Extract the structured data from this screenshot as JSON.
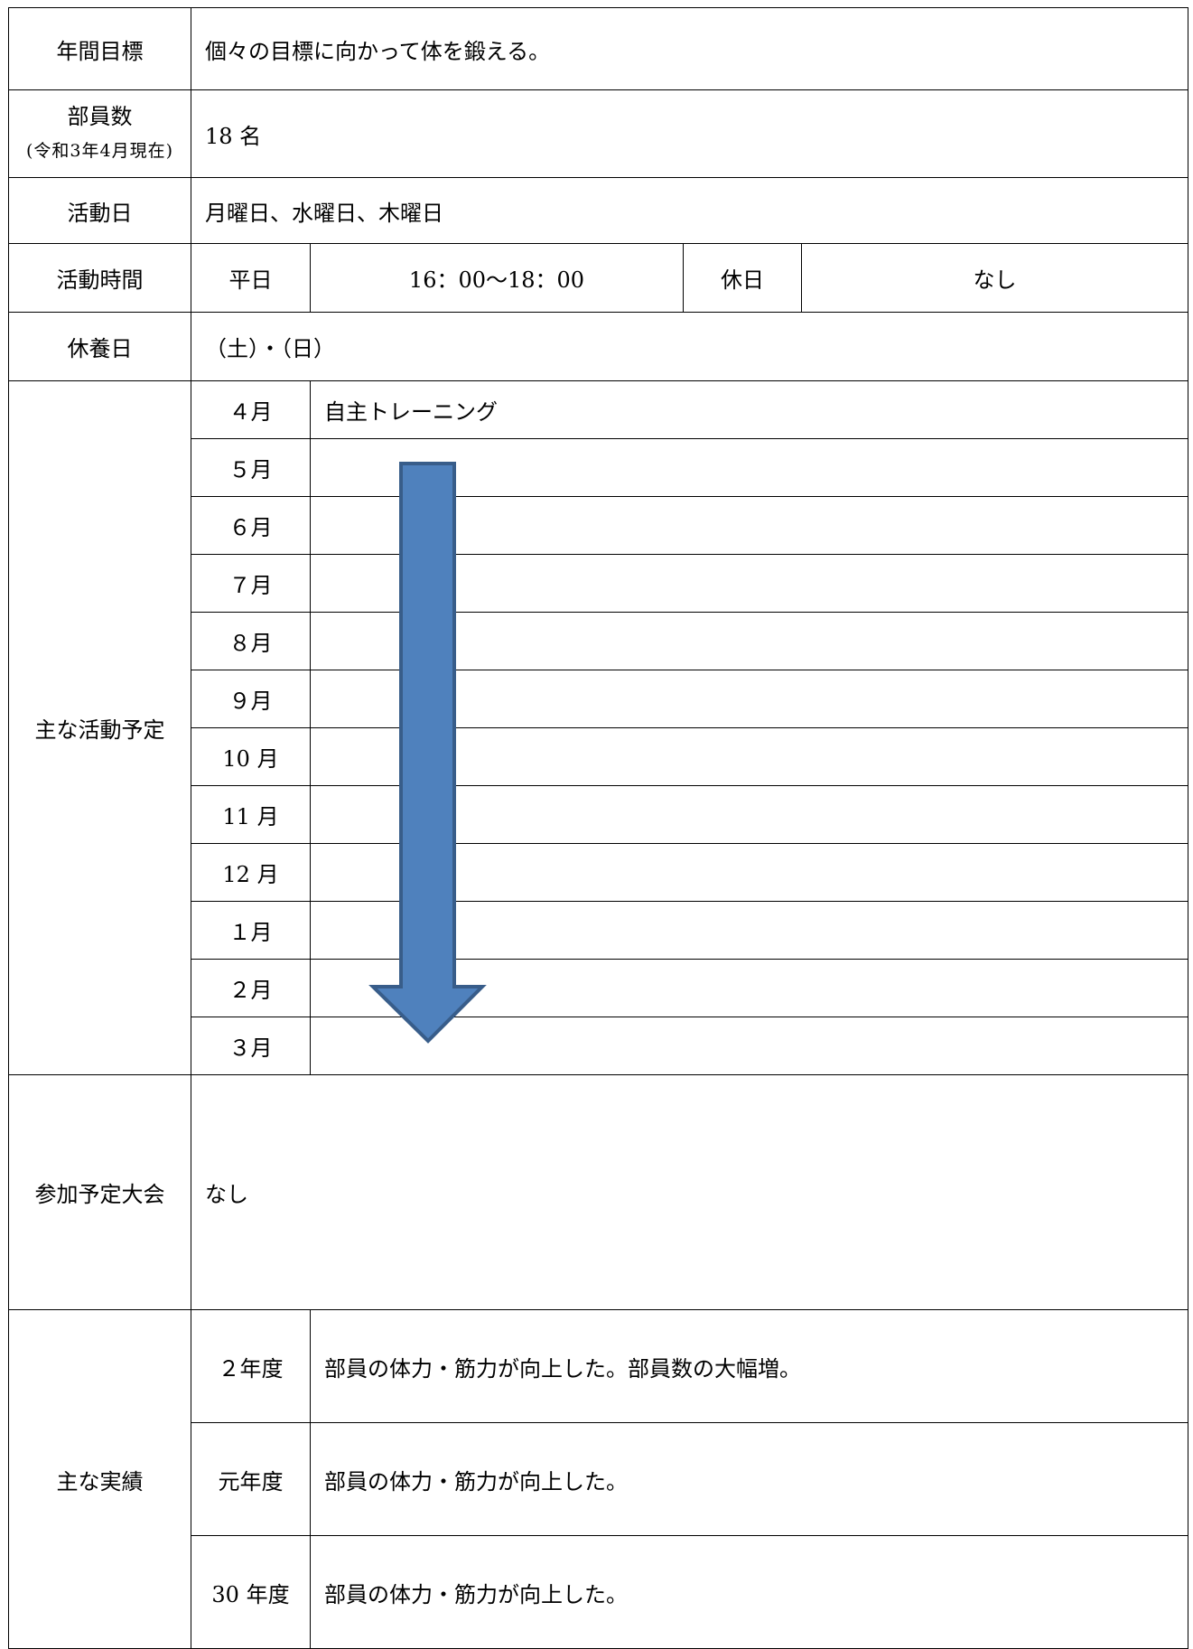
{
  "rows": {
    "goal": {
      "label": "年間目標",
      "value": "個々の目標に向かって体を鍛える。"
    },
    "members": {
      "label": "部員数",
      "note": "(令和3年4月現在)",
      "value": "18 名"
    },
    "days": {
      "label": "活動日",
      "value": "月曜日、水曜日、木曜日"
    },
    "hours": {
      "label": "活動時間",
      "weekday_label": "平日",
      "weekday_value": "16：00〜18：00",
      "holiday_label": "休日",
      "holiday_value": "なし"
    },
    "rest": {
      "label": "休養日",
      "value": "（土）・（日）"
    },
    "schedule": {
      "label": "主な活動予定",
      "months": [
        {
          "month": "４月",
          "activity": "自主トレーニング"
        },
        {
          "month": "５月",
          "activity": ""
        },
        {
          "month": "６月",
          "activity": ""
        },
        {
          "month": "７月",
          "activity": ""
        },
        {
          "month": "８月",
          "activity": ""
        },
        {
          "month": "９月",
          "activity": ""
        },
        {
          "month": "10 月",
          "activity": ""
        },
        {
          "month": "11 月",
          "activity": ""
        },
        {
          "month": "12 月",
          "activity": ""
        },
        {
          "month": "１月",
          "activity": ""
        },
        {
          "month": "２月",
          "activity": ""
        },
        {
          "month": "３月",
          "activity": ""
        }
      ],
      "arrow": {
        "fill": "#4f81bd",
        "stroke": "#385d8a",
        "from_month": "５月",
        "to_month": "３月"
      }
    },
    "tournaments": {
      "label": "参加予定大会",
      "value": "なし"
    },
    "achievements": {
      "label": "主な実績",
      "items": [
        {
          "year": "２年度",
          "text": "部員の体力・筋力が向上した。部員数の大幅増。"
        },
        {
          "year": "元年度",
          "text": "部員の体力・筋力が向上した。"
        },
        {
          "year": "30 年度",
          "text": "部員の体力・筋力が向上した。"
        }
      ]
    }
  }
}
